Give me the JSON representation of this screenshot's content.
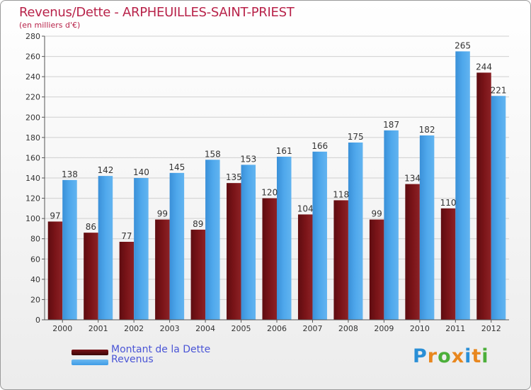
{
  "title": "Revenus/Dette - ARPHEUILLES-SAINT-PRIEST",
  "subtitle": "(en milliers d'€)",
  "legend": {
    "debt_label": "Montant de la Dette",
    "revenue_label": "Revenus"
  },
  "logo": {
    "text": "Proxiti",
    "colors": [
      "#2a8fd6",
      "#e8871e",
      "#4caf3a",
      "#e8871e",
      "#2a8fd6",
      "#e8871e",
      "#4caf3a"
    ]
  },
  "colors": {
    "debt": "#7a1418",
    "revenue": "#3f9ce6",
    "value_label": "#333333",
    "axis": "#555555"
  },
  "chart_data": {
    "type": "bar",
    "title": "Revenus/Dette - ARPHEUILLES-SAINT-PRIEST",
    "subtitle": "(en milliers d'€)",
    "categories": [
      "2000",
      "2001",
      "2002",
      "2003",
      "2004",
      "2005",
      "2006",
      "2007",
      "2008",
      "2009",
      "2010",
      "2011",
      "2012"
    ],
    "series": [
      {
        "name": "Montant de la Dette",
        "values": [
          97,
          86,
          77,
          99,
          89,
          135,
          120,
          104,
          118,
          99,
          134,
          110,
          244
        ]
      },
      {
        "name": "Revenus",
        "values": [
          138,
          142,
          140,
          145,
          158,
          153,
          161,
          166,
          175,
          187,
          182,
          265,
          221
        ]
      }
    ],
    "ylim": [
      0,
      280
    ],
    "yticks": [
      0,
      20,
      40,
      60,
      80,
      100,
      120,
      140,
      160,
      180,
      200,
      220,
      240,
      260,
      280
    ],
    "grid": true,
    "legend_position": "bottom-left"
  }
}
